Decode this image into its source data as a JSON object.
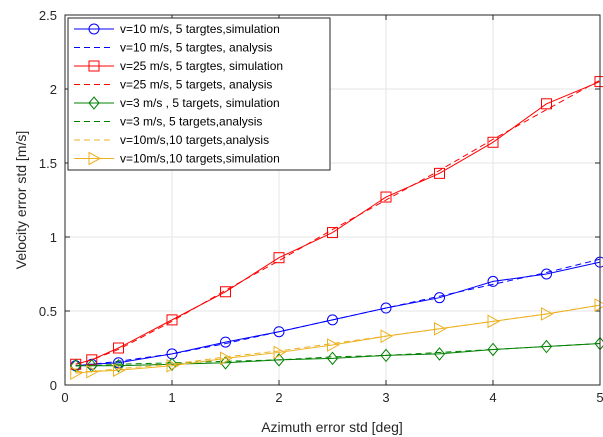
{
  "chart_data": {
    "type": "line",
    "xlabel": "Azimuth error std [deg]",
    "ylabel": "Velocity error std [m/s]",
    "xlim": [
      0,
      5
    ],
    "ylim": [
      0,
      2.5
    ],
    "xticks": [
      0,
      1,
      2,
      3,
      4,
      5
    ],
    "yticks": [
      0,
      0.5,
      1,
      1.5,
      2,
      2.5
    ],
    "ytick_labels": [
      "0",
      "0.5",
      "1",
      "1.5",
      "2",
      "2.5"
    ],
    "grid": true,
    "legend_position": "top-left",
    "series": [
      {
        "name": "v=10 m/s, 5 targtes,simulation",
        "color": "#0000ff",
        "style": "solid",
        "marker": "circle",
        "x": [
          0.1,
          0.25,
          0.5,
          1,
          1.5,
          2,
          2.5,
          3,
          3.5,
          4,
          4.5,
          5
        ],
        "y": [
          0.13,
          0.14,
          0.15,
          0.21,
          0.29,
          0.36,
          0.44,
          0.52,
          0.59,
          0.7,
          0.75,
          0.83
        ]
      },
      {
        "name": "v=10 m/s, 5 targtes, analysis",
        "color": "#0000ff",
        "style": "dashed",
        "marker": "none",
        "x": [
          0.1,
          0.25,
          0.5,
          1,
          1.5,
          2,
          2.5,
          3,
          3.5,
          4,
          4.5,
          5
        ],
        "y": [
          0.13,
          0.14,
          0.16,
          0.21,
          0.28,
          0.36,
          0.44,
          0.52,
          0.6,
          0.68,
          0.76,
          0.85
        ]
      },
      {
        "name": "v=25 m/s, 5 targtes, simulation",
        "color": "#ff0000",
        "style": "solid",
        "marker": "square",
        "x": [
          0.1,
          0.25,
          0.5,
          1,
          1.5,
          2,
          2.5,
          3,
          3.5,
          4,
          4.5,
          5
        ],
        "y": [
          0.14,
          0.17,
          0.25,
          0.44,
          0.63,
          0.86,
          1.03,
          1.27,
          1.43,
          1.64,
          1.9,
          2.05
        ]
      },
      {
        "name": "v=25 m/s, 5 targets, analysis",
        "color": "#ff0000",
        "style": "dashed",
        "marker": "none",
        "x": [
          0.1,
          0.25,
          0.5,
          1,
          1.5,
          2,
          2.5,
          3,
          3.5,
          4,
          4.5,
          5
        ],
        "y": [
          0.14,
          0.17,
          0.24,
          0.43,
          0.64,
          0.84,
          1.05,
          1.25,
          1.45,
          1.66,
          1.86,
          2.06
        ]
      },
      {
        "name": "v=3 m/s , 5 targets, simulation",
        "color": "#008000",
        "style": "solid",
        "marker": "diamond",
        "x": [
          0.1,
          0.25,
          0.5,
          1,
          1.5,
          2,
          2.5,
          3,
          3.5,
          4,
          4.5,
          5
        ],
        "y": [
          0.13,
          0.13,
          0.13,
          0.14,
          0.15,
          0.17,
          0.18,
          0.2,
          0.21,
          0.24,
          0.26,
          0.28
        ]
      },
      {
        "name": "v=3 m/s,  5 targets,analysis",
        "color": "#008000",
        "style": "dashed",
        "marker": "none",
        "x": [
          0.1,
          0.25,
          0.5,
          1,
          1.5,
          2,
          2.5,
          3,
          3.5,
          4,
          4.5,
          5
        ],
        "y": [
          0.13,
          0.13,
          0.14,
          0.15,
          0.16,
          0.17,
          0.19,
          0.2,
          0.22,
          0.24,
          0.26,
          0.28
        ]
      },
      {
        "name": "v=10m/s,10 targets,analysis",
        "color": "#edb120",
        "style": "dashed",
        "marker": "none",
        "x": [
          0.1,
          0.25,
          0.5,
          1,
          1.5,
          2,
          2.5,
          3,
          3.5,
          4,
          4.5,
          5
        ],
        "y": [
          0.09,
          0.09,
          0.11,
          0.14,
          0.19,
          0.23,
          0.28,
          0.33,
          0.38,
          0.43,
          0.48,
          0.54
        ]
      },
      {
        "name": "v=10m/s,10 targets,simulation",
        "color": "#edb120",
        "style": "solid",
        "marker": "triangle-right",
        "x": [
          0.1,
          0.25,
          0.5,
          1,
          1.5,
          2,
          2.5,
          3,
          3.5,
          4,
          4.5,
          5
        ],
        "y": [
          0.08,
          0.09,
          0.1,
          0.13,
          0.18,
          0.22,
          0.27,
          0.33,
          0.38,
          0.43,
          0.48,
          0.54
        ]
      }
    ]
  }
}
